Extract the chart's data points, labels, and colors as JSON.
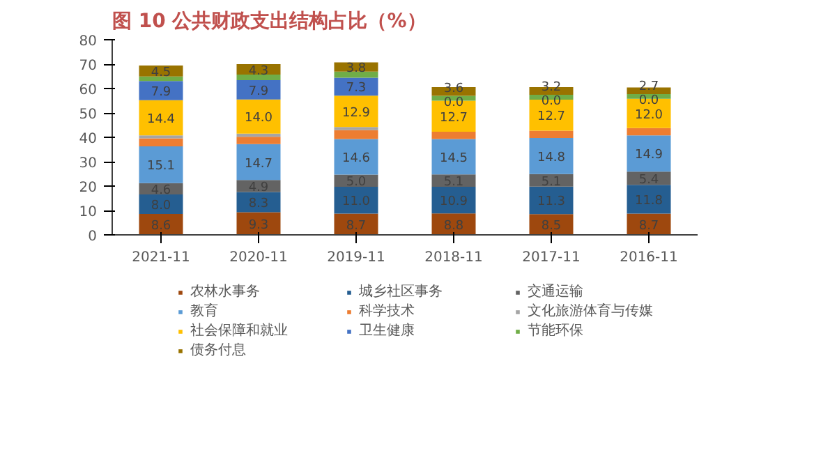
{
  "chart_data": {
    "type": "bar",
    "title": "图 10  公共财政支出结构占比（%）",
    "stacked": true,
    "categories": [
      "2021-11",
      "2020-11",
      "2019-11",
      "2018-11",
      "2017-11",
      "2016-11"
    ],
    "ylim": [
      0,
      80
    ],
    "yticks": [
      0,
      10,
      20,
      30,
      40,
      50,
      60,
      70,
      80
    ],
    "grid": false,
    "legend": "bottom",
    "series": [
      {
        "name": "农林水事务",
        "color": "#9e480e",
        "values": [
          8.6,
          9.3,
          8.7,
          8.8,
          8.5,
          8.7
        ],
        "value_labels": [
          "8.6",
          "9.3",
          "8.7",
          "8.8",
          "8.5",
          "8.7"
        ]
      },
      {
        "name": "城乡社区事务",
        "color": "#255e91",
        "values": [
          8.0,
          8.3,
          11.0,
          10.9,
          11.3,
          11.8
        ],
        "value_labels": [
          "8.0",
          "8.3",
          "11.0",
          "10.9",
          "11.3",
          "11.8"
        ]
      },
      {
        "name": "交通运输",
        "color": "#636363",
        "values": [
          4.6,
          4.9,
          5.0,
          5.1,
          5.1,
          5.4
        ],
        "value_labels": [
          "4.6",
          "4.9",
          "5.0",
          "5.1",
          "5.1",
          "5.4"
        ]
      },
      {
        "name": "教育",
        "color": "#5b9bd5",
        "values": [
          15.1,
          14.7,
          14.6,
          14.5,
          14.8,
          14.9
        ],
        "value_labels": [
          "15.1",
          "14.7",
          "14.6",
          "14.5",
          "14.8",
          "14.9"
        ]
      },
      {
        "name": "科学技术",
        "color": "#ed7d31",
        "values": [
          3.3,
          3.0,
          3.6,
          3.0,
          3.0,
          3.0
        ],
        "value_labels": [
          null,
          null,
          null,
          null,
          null,
          null
        ]
      },
      {
        "name": "文化旅游体育与传媒",
        "color": "#a5a5a5",
        "values": [
          1.2,
          1.3,
          1.3,
          0,
          0,
          0
        ],
        "value_labels": [
          null,
          null,
          null,
          null,
          null,
          null
        ]
      },
      {
        "name": "社会保障和就业",
        "color": "#ffc000",
        "values": [
          14.4,
          14.0,
          12.9,
          12.7,
          12.7,
          12.0
        ],
        "value_labels": [
          "14.4",
          "14.0",
          "12.9",
          "12.7",
          "12.7",
          "12.0"
        ]
      },
      {
        "name": "卫生健康",
        "color": "#4472c4",
        "values": [
          7.9,
          7.9,
          7.3,
          0.0,
          0.0,
          0.0
        ],
        "value_labels": [
          "7.9",
          "7.9",
          "7.3",
          "0.0",
          "0.0",
          "0.0"
        ]
      },
      {
        "name": "节能环保",
        "color": "#70ad47",
        "values": [
          1.8,
          2.3,
          2.5,
          2.0,
          2.0,
          1.9
        ],
        "value_labels": [
          null,
          null,
          null,
          null,
          null,
          null
        ]
      },
      {
        "name": "债务付息",
        "color": "#997300",
        "values": [
          4.5,
          4.3,
          3.8,
          3.6,
          3.2,
          2.7
        ],
        "value_labels": [
          "4.5",
          "4.3",
          "3.8",
          "3.6",
          "3.2",
          "2.7"
        ]
      }
    ]
  }
}
